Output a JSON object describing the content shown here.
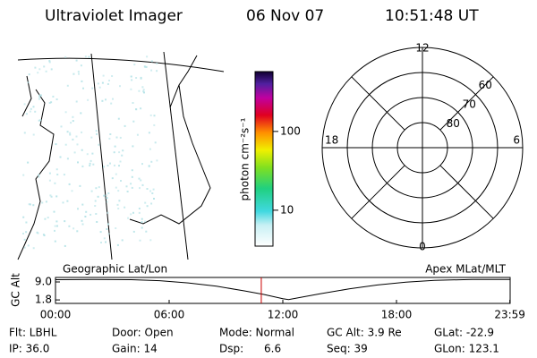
{
  "header": {
    "instrument": "Ultraviolet Imager",
    "date": "06 Nov 07",
    "time": "10:51:48 UT"
  },
  "colorbar": {
    "label": "photon cm⁻²s⁻¹",
    "log": true,
    "lim": [
      3.5,
      575
    ],
    "ticks": [
      10,
      100
    ]
  },
  "polar": {
    "rlim": [
      90,
      50
    ],
    "rings": [
      80,
      70,
      60,
      50
    ],
    "ring_labels": [
      80,
      70,
      60
    ],
    "mlt_labels": [
      12,
      18,
      6,
      0
    ]
  },
  "chart_data": {
    "type": "line",
    "ylabel": "GC Alt",
    "left_label": "Geographic Lat/Lon",
    "right_label": "Apex MLat/MLT",
    "x": [
      0,
      2,
      4,
      5.5,
      7,
      8.5,
      10,
      11,
      12,
      12.3,
      13,
      14,
      15.5,
      17,
      18.5,
      20,
      22,
      23.983
    ],
    "values": [
      9.9,
      10.0,
      9.9,
      9.5,
      8.6,
      7.3,
      5.4,
      4.0,
      2.3,
      1.9,
      2.9,
      4.3,
      6.2,
      7.8,
      8.9,
      9.6,
      10.0,
      10.0
    ],
    "color": "#000000",
    "xlim": [
      0,
      24
    ],
    "ylim": [
      0.4,
      10.8
    ],
    "yticks": [
      {
        "value": 9.0,
        "label": "9.0"
      },
      {
        "value": 1.8,
        "label": "1.8"
      }
    ],
    "xticks": [
      {
        "value": 0,
        "label": "00:00"
      },
      {
        "value": 6,
        "label": "06:00"
      },
      {
        "value": 12,
        "label": "12:00"
      },
      {
        "value": 18,
        "label": "18:00"
      },
      {
        "value": 23.983,
        "label": "23:59"
      }
    ],
    "marker_x": 10.863,
    "marker_color": "#cc0000"
  },
  "info": [
    [
      "Flt: LBHL",
      "Door: Open",
      "Mode: Normal",
      "GC Alt: 3.9 Re",
      "GLat: -22.9"
    ],
    [
      "IP: 36.0",
      "Gain: 14",
      "Dsp:      6.6",
      "Seq: 39",
      "GLon: 123.1"
    ]
  ]
}
